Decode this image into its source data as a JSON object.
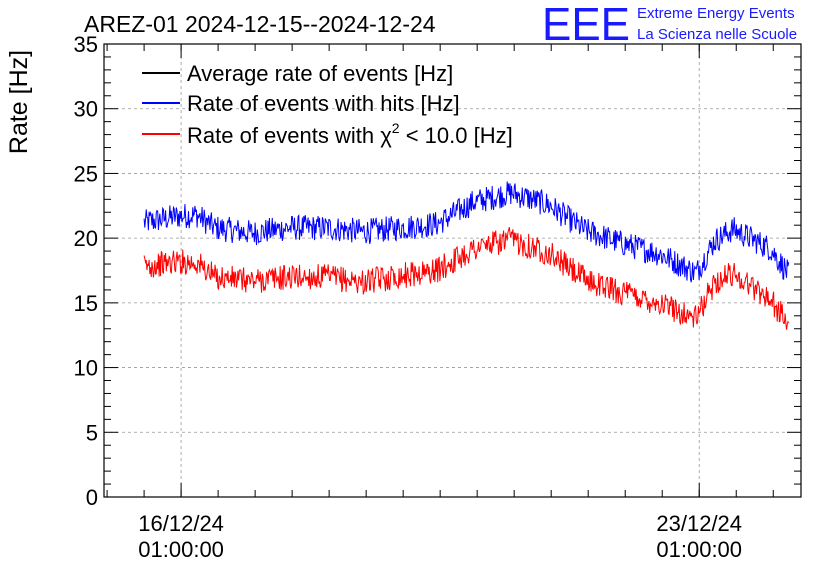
{
  "chart_data": {
    "type": "line",
    "title": "AREZ-01 2024-12-15--2024-12-24",
    "ylabel": "Rate [Hz]",
    "xlabel": "",
    "ylim": [
      0,
      35
    ],
    "yticks": [
      0,
      5,
      10,
      15,
      20,
      25,
      30,
      35
    ],
    "x_range": [
      "2024-12-15 00:00",
      "2024-12-24 10:00"
    ],
    "x_ticks": [
      {
        "date": "2024-12-16 01:00:00",
        "line1": "16/12/24",
        "line2": "01:00:00"
      },
      {
        "date": "2024-12-23 01:00:00",
        "line1": "23/12/24",
        "line2": "01:00:00"
      }
    ],
    "grid": true,
    "legend_position": "top-left",
    "legend": {
      "average_label": "Average rate of events [Hz]",
      "hits_label": "Rate of events with hits [Hz]",
      "chi2_prefix": "Rate of events with ",
      "chi2_symbol": "χ",
      "chi2_exp": "2",
      "chi2_suffix": " < 10.0 [Hz]"
    },
    "series": [
      {
        "name": "Rate of events with hits [Hz]",
        "color": "#0000ff",
        "noise_amplitude": 1.0,
        "x": [
          "2024-12-15 13:00",
          "2024-12-16 00:00",
          "2024-12-16 06:00",
          "2024-12-16 12:00",
          "2024-12-17 00:00",
          "2024-12-17 12:00",
          "2024-12-18 00:00",
          "2024-12-18 12:00",
          "2024-12-19 00:00",
          "2024-12-19 12:00",
          "2024-12-20 00:00",
          "2024-12-20 12:00",
          "2024-12-21 00:00",
          "2024-12-21 12:00",
          "2024-12-22 00:00",
          "2024-12-22 12:00",
          "2024-12-23 00:00",
          "2024-12-23 06:00",
          "2024-12-23 12:00",
          "2024-12-24 00:00",
          "2024-12-24 06:00"
        ],
        "y": [
          21.2,
          21.7,
          21.8,
          20.8,
          20.4,
          20.8,
          20.8,
          20.5,
          20.8,
          21.1,
          22.8,
          23.5,
          22.6,
          20.6,
          19.6,
          18.8,
          17.3,
          19.8,
          20.7,
          19.2,
          17.2
        ]
      },
      {
        "name": "Rate of events with χ2 < 10.0 [Hz]",
        "color": "#ff0000",
        "noise_amplitude": 1.0,
        "x": [
          "2024-12-15 13:00",
          "2024-12-16 00:00",
          "2024-12-16 06:00",
          "2024-12-16 12:00",
          "2024-12-17 00:00",
          "2024-12-17 12:00",
          "2024-12-18 00:00",
          "2024-12-18 12:00",
          "2024-12-19 00:00",
          "2024-12-19 12:00",
          "2024-12-20 00:00",
          "2024-12-20 12:00",
          "2024-12-21 00:00",
          "2024-12-21 12:00",
          "2024-12-22 00:00",
          "2024-12-22 12:00",
          "2024-12-23 00:00",
          "2024-12-23 06:00",
          "2024-12-23 12:00",
          "2024-12-24 00:00",
          "2024-12-24 06:00"
        ],
        "y": [
          17.8,
          18.2,
          18.1,
          17.0,
          16.7,
          17.0,
          17.0,
          16.6,
          17.1,
          17.5,
          19.2,
          19.9,
          18.9,
          16.8,
          15.8,
          15.0,
          13.8,
          16.6,
          17.3,
          15.3,
          13.3
        ]
      }
    ]
  },
  "branding": {
    "logo_text": "EEE",
    "line1": "Extreme Energy Events",
    "line2": "La Scienza nelle Scuole"
  }
}
